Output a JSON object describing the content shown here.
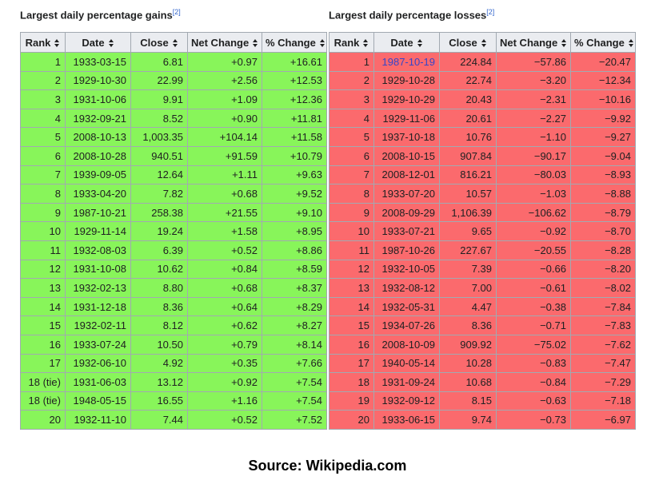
{
  "gains": {
    "caption": "Largest daily percentage gains",
    "ref": "[2]",
    "headers": [
      "Rank",
      "Date",
      "Close",
      "Net Change",
      "% Change"
    ],
    "rows": [
      [
        "1",
        "1933-03-15",
        "6.81",
        "+0.97",
        "+16.61"
      ],
      [
        "2",
        "1929-10-30",
        "22.99",
        "+2.56",
        "+12.53"
      ],
      [
        "3",
        "1931-10-06",
        "9.91",
        "+1.09",
        "+12.36"
      ],
      [
        "4",
        "1932-09-21",
        "8.52",
        "+0.90",
        "+11.81"
      ],
      [
        "5",
        "2008-10-13",
        "1,003.35",
        "+104.14",
        "+11.58"
      ],
      [
        "6",
        "2008-10-28",
        "940.51",
        "+91.59",
        "+10.79"
      ],
      [
        "7",
        "1939-09-05",
        "12.64",
        "+1.11",
        "+9.63"
      ],
      [
        "8",
        "1933-04-20",
        "7.82",
        "+0.68",
        "+9.52"
      ],
      [
        "9",
        "1987-10-21",
        "258.38",
        "+21.55",
        "+9.10"
      ],
      [
        "10",
        "1929-11-14",
        "19.24",
        "+1.58",
        "+8.95"
      ],
      [
        "11",
        "1932-08-03",
        "6.39",
        "+0.52",
        "+8.86"
      ],
      [
        "12",
        "1931-10-08",
        "10.62",
        "+0.84",
        "+8.59"
      ],
      [
        "13",
        "1932-02-13",
        "8.80",
        "+0.68",
        "+8.37"
      ],
      [
        "14",
        "1931-12-18",
        "8.36",
        "+0.64",
        "+8.29"
      ],
      [
        "15",
        "1932-02-11",
        "8.12",
        "+0.62",
        "+8.27"
      ],
      [
        "16",
        "1933-07-24",
        "10.50",
        "+0.79",
        "+8.14"
      ],
      [
        "17",
        "1932-06-10",
        "4.92",
        "+0.35",
        "+7.66"
      ],
      [
        "18 (tie)",
        "1931-06-03",
        "13.12",
        "+0.92",
        "+7.54"
      ],
      [
        "18 (tie)",
        "1948-05-15",
        "16.55",
        "+1.16",
        "+7.54"
      ],
      [
        "20",
        "1932-11-10",
        "7.44",
        "+0.52",
        "+7.52"
      ]
    ]
  },
  "losses": {
    "caption": "Largest daily percentage losses",
    "ref": "[2]",
    "headers": [
      "Rank",
      "Date",
      "Close",
      "Net Change",
      "% Change"
    ],
    "rows": [
      [
        "1",
        "1987-10-19",
        "224.84",
        "−57.86",
        "−20.47"
      ],
      [
        "2",
        "1929-10-28",
        "22.74",
        "−3.20",
        "−12.34"
      ],
      [
        "3",
        "1929-10-29",
        "20.43",
        "−2.31",
        "−10.16"
      ],
      [
        "4",
        "1929-11-06",
        "20.61",
        "−2.27",
        "−9.92"
      ],
      [
        "5",
        "1937-10-18",
        "10.76",
        "−1.10",
        "−9.27"
      ],
      [
        "6",
        "2008-10-15",
        "907.84",
        "−90.17",
        "−9.04"
      ],
      [
        "7",
        "2008-12-01",
        "816.21",
        "−80.03",
        "−8.93"
      ],
      [
        "8",
        "1933-07-20",
        "10.57",
        "−1.03",
        "−8.88"
      ],
      [
        "9",
        "2008-09-29",
        "1,106.39",
        "−106.62",
        "−8.79"
      ],
      [
        "10",
        "1933-07-21",
        "9.65",
        "−0.92",
        "−8.70"
      ],
      [
        "11",
        "1987-10-26",
        "227.67",
        "−20.55",
        "−8.28"
      ],
      [
        "12",
        "1932-10-05",
        "7.39",
        "−0.66",
        "−8.20"
      ],
      [
        "13",
        "1932-08-12",
        "7.00",
        "−0.61",
        "−8.02"
      ],
      [
        "14",
        "1932-05-31",
        "4.47",
        "−0.38",
        "−7.84"
      ],
      [
        "15",
        "1934-07-26",
        "8.36",
        "−0.71",
        "−7.83"
      ],
      [
        "16",
        "2008-10-09",
        "909.92",
        "−75.02",
        "−7.62"
      ],
      [
        "17",
        "1940-05-14",
        "10.28",
        "−0.83",
        "−7.47"
      ],
      [
        "18",
        "1931-09-24",
        "10.68",
        "−0.84",
        "−7.29"
      ],
      [
        "19",
        "1932-09-12",
        "8.15",
        "−0.63",
        "−7.18"
      ],
      [
        "20",
        "1933-06-15",
        "9.74",
        "−0.73",
        "−6.97"
      ]
    ],
    "linked_cell": {
      "row": 0,
      "col": 1
    }
  },
  "colors": {
    "gains_row": "#88f55a",
    "losses_row": "#fb6a6d",
    "header_bg": "#eaecf0",
    "border": "#a2a9b1",
    "link": "#3645c9"
  },
  "source": "Source: Wikipedia.com"
}
